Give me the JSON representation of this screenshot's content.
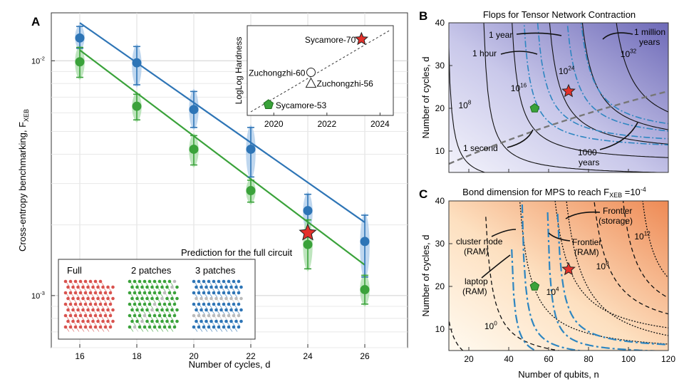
{
  "chart_data": [
    {
      "panel": "A",
      "type": "scatter",
      "xlabel": "Number of cycles, d",
      "ylabel_main": "Cross-entropy benchmarking, F",
      "ylabel_sub": "XEB",
      "x_ticks": [
        16,
        18,
        20,
        22,
        24,
        26
      ],
      "y_scale": "log",
      "ylim": [
        0.0006,
        0.016
      ],
      "y_tick_labels": [
        {
          "value": 0.01,
          "mantissa": "10",
          "exp": "-2"
        },
        {
          "value": 0.001,
          "mantissa": "10",
          "exp": "-3"
        }
      ],
      "series": [
        {
          "name": "blue",
          "color": "#2e75b6",
          "x": [
            16,
            18,
            20,
            22,
            24,
            26
          ],
          "y": [
            0.0125,
            0.0098,
            0.0062,
            0.0042,
            0.0023,
            0.0017
          ],
          "yerr_low": [
            0.0113,
            0.0079,
            0.0052,
            0.0032,
            0.0019,
            0.0012
          ],
          "yerr_high": [
            0.014,
            0.0115,
            0.0074,
            0.0052,
            0.0027,
            0.0022
          ],
          "fit": [
            [
              16,
              0.0145
            ],
            [
              26,
              0.00205
            ]
          ]
        },
        {
          "name": "green",
          "color": "#3aa23a",
          "x": [
            16,
            18,
            20,
            22,
            24,
            26
          ],
          "y": [
            0.0099,
            0.0064,
            0.0042,
            0.0028,
            0.00165,
            0.00106
          ],
          "yerr_low": [
            0.0085,
            0.0056,
            0.0036,
            0.0025,
            0.0013,
            0.00092
          ],
          "yerr_high": [
            0.0114,
            0.0072,
            0.0048,
            0.0031,
            0.0021,
            0.00122
          ],
          "fit": [
            [
              16,
              0.0111
            ],
            [
              26,
              0.00135
            ]
          ]
        }
      ],
      "prediction": {
        "label": "Prediction for the full circuit",
        "x": 24,
        "y": 0.00185,
        "color": "#e4312b"
      },
      "inset": {
        "ylabel": "LogLog Hardness",
        "x_ticks": [
          2020,
          2022,
          2024
        ],
        "points": [
          {
            "label": "Sycamore-53",
            "year": 2019.8,
            "hardness": 0.12,
            "marker": "pentagon",
            "color": "#3aa23a"
          },
          {
            "label": "Zuchongzhi-60",
            "year": 2021.4,
            "hardness": 0.48,
            "marker": "circle",
            "color": "#ffffff"
          },
          {
            "label": "Zuchongzhi-56",
            "year": 2021.4,
            "hardness": 0.36,
            "marker": "triangle",
            "color": "#ffffff"
          },
          {
            "label": "Sycamore-70",
            "year": 2023.3,
            "hardness": 0.85,
            "marker": "star",
            "color": "#e4312b"
          }
        ]
      },
      "legend": {
        "labels": [
          "Full",
          "2 patches",
          "3 patches"
        ],
        "colors": [
          "#d9534f",
          "#3aa23a",
          "#2e75b6"
        ]
      }
    },
    {
      "panel": "B",
      "type": "contour",
      "title": "Flops for Tensor Network Contraction",
      "xlim": [
        10,
        120
      ],
      "ylim": [
        5,
        40
      ],
      "y_ticks": [
        10,
        20,
        30,
        40
      ],
      "ylabel": "Number of cycles, d",
      "contour_levels": [
        {
          "label": "10",
          "exp": "8",
          "x": 18,
          "y": 20
        },
        {
          "label": "10",
          "exp": "16",
          "x": 45,
          "y": 24
        },
        {
          "label": "10",
          "exp": "24",
          "x": 69,
          "y": 28
        },
        {
          "label": "10",
          "exp": "32",
          "x": 100,
          "y": 32
        }
      ],
      "annotations": [
        "1 year",
        "1 hour",
        "1 second",
        "1000 years",
        "1 million years"
      ],
      "points": [
        {
          "marker": "pentagon",
          "color": "#3aa23a",
          "n": 53,
          "d": 20
        },
        {
          "marker": "star",
          "color": "#e4312b",
          "n": 70,
          "d": 24
        }
      ]
    },
    {
      "panel": "C",
      "type": "contour",
      "title_main": "Bond dimension for MPS to reach F",
      "title_sub": "XEB",
      "title_tail": " =10",
      "title_exp": "-4",
      "xlim": [
        10,
        120
      ],
      "ylim": [
        5,
        40
      ],
      "x_ticks": [
        20,
        40,
        60,
        80,
        100,
        120
      ],
      "y_ticks": [
        10,
        20,
        30,
        40
      ],
      "xlabel": "Number of qubits, n",
      "ylabel": "Number of cycles, d",
      "contour_levels": [
        {
          "label": "10",
          "exp": "0",
          "x": 31,
          "y": 10
        },
        {
          "label": "10",
          "exp": "4",
          "x": 62,
          "y": 18
        },
        {
          "label": "10",
          "exp": "8",
          "x": 87,
          "y": 24
        },
        {
          "label": "10",
          "exp": "12",
          "x": 107,
          "y": 31
        }
      ],
      "annotations": [
        "cluster node (RAM)",
        "laptop (RAM)",
        "Frontier (storage)",
        "Frontier (RAM)"
      ],
      "points": [
        {
          "marker": "pentagon",
          "color": "#3aa23a",
          "n": 53,
          "d": 20
        },
        {
          "marker": "star",
          "color": "#e4312b",
          "n": 70,
          "d": 24
        }
      ]
    }
  ]
}
